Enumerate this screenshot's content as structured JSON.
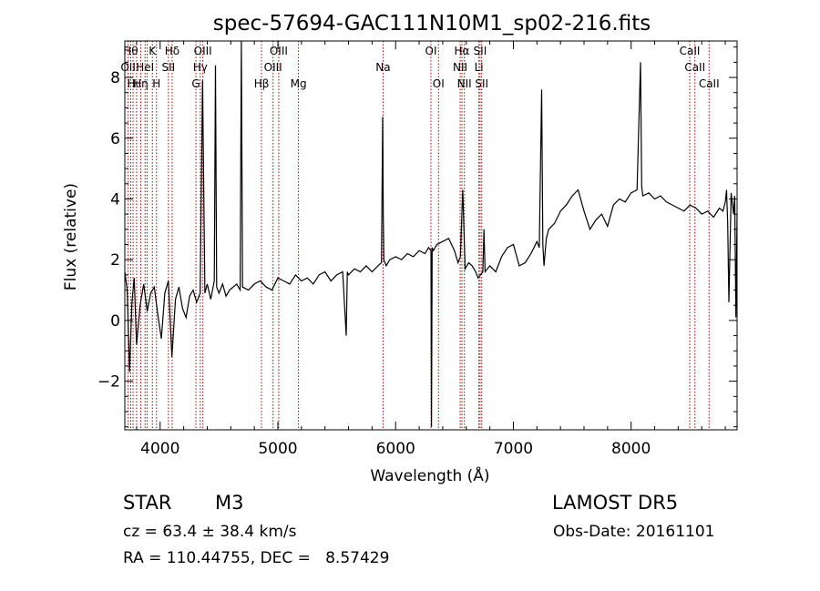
{
  "chart_data": {
    "type": "line",
    "title": "spec-57694-GAC111N10M1_sp02-216.fits",
    "xlabel": "Wavelength (Å)",
    "ylabel": "Flux (relative)",
    "xlim": [
      3700,
      8900
    ],
    "ylim": [
      -3.6,
      9.2
    ],
    "grid": false,
    "xticks": [
      4000,
      5000,
      6000,
      7000,
      8000
    ],
    "yticks": [
      -2,
      0,
      2,
      4,
      6,
      8
    ],
    "line_color": "#000000",
    "marker_color": "#aa0000",
    "series": [
      {
        "x": [
          3700,
          3720,
          3740,
          3760,
          3780,
          3800,
          3830,
          3860,
          3890,
          3920,
          3950,
          3980,
          4010,
          4040,
          4070,
          4100,
          4130,
          4160,
          4190,
          4220,
          4250,
          4280,
          4310,
          4340,
          4360,
          4380,
          4400,
          4430,
          4460,
          4470,
          4480,
          4500,
          4530,
          4560,
          4590,
          4620,
          4650,
          4680,
          4690,
          4700,
          4750,
          4800,
          4850,
          4900,
          4950,
          5000,
          5050,
          5100,
          5150,
          5200,
          5250,
          5300,
          5350,
          5400,
          5450,
          5500,
          5550,
          5580,
          5590,
          5600,
          5650,
          5700,
          5750,
          5800,
          5850,
          5880,
          5890,
          5895,
          5900,
          5920,
          5950,
          6000,
          6050,
          6100,
          6150,
          6200,
          6250,
          6280,
          6300,
          6305,
          6310,
          6320,
          6350,
          6400,
          6450,
          6500,
          6530,
          6550,
          6570,
          6590,
          6620,
          6650,
          6680,
          6700,
          6720,
          6740,
          6750,
          6760,
          6800,
          6850,
          6900,
          6950,
          7000,
          7050,
          7100,
          7150,
          7200,
          7220,
          7240,
          7250,
          7260,
          7280,
          7300,
          7350,
          7400,
          7450,
          7500,
          7550,
          7600,
          7650,
          7700,
          7750,
          7800,
          7850,
          7900,
          7950,
          8000,
          8050,
          8080,
          8090,
          8100,
          8150,
          8200,
          8250,
          8300,
          8350,
          8400,
          8450,
          8500,
          8550,
          8600,
          8650,
          8700,
          8750,
          8780,
          8800,
          8810,
          8820,
          8830,
          8850,
          8870,
          8880,
          8890,
          8900
        ],
        "y": [
          1.6,
          1.0,
          -1.7,
          0.6,
          1.4,
          -0.8,
          0.5,
          1.2,
          0.3,
          0.9,
          1.1,
          0.2,
          -0.6,
          0.9,
          1.3,
          -1.2,
          0.7,
          1.1,
          0.4,
          0.1,
          0.8,
          1.0,
          0.6,
          0.9,
          7.9,
          0.9,
          1.2,
          0.7,
          1.3,
          8.4,
          1.1,
          0.9,
          1.2,
          0.8,
          1.0,
          1.1,
          1.2,
          1.0,
          9.2,
          1.1,
          1.0,
          1.2,
          1.3,
          1.1,
          1.0,
          1.4,
          1.3,
          1.2,
          1.5,
          1.3,
          1.4,
          1.2,
          1.5,
          1.6,
          1.3,
          1.5,
          1.6,
          -0.5,
          1.6,
          1.5,
          1.7,
          1.6,
          1.8,
          1.6,
          1.8,
          1.9,
          6.7,
          3.4,
          2.0,
          1.8,
          2.0,
          2.1,
          2.0,
          2.2,
          2.1,
          2.3,
          2.2,
          2.4,
          2.3,
          -3.5,
          2.4,
          2.3,
          2.5,
          2.6,
          2.7,
          2.3,
          1.9,
          2.1,
          4.3,
          1.7,
          1.9,
          1.8,
          1.6,
          1.4,
          1.5,
          1.6,
          3.0,
          1.6,
          1.8,
          1.6,
          2.1,
          2.4,
          2.5,
          1.8,
          1.9,
          2.2,
          2.6,
          2.4,
          7.6,
          2.5,
          1.8,
          2.7,
          3.0,
          3.2,
          3.6,
          3.8,
          4.1,
          4.3,
          3.6,
          3.0,
          3.3,
          3.5,
          3.1,
          3.8,
          4.0,
          3.9,
          4.2,
          4.3,
          8.5,
          4.4,
          4.1,
          4.2,
          4.0,
          4.1,
          3.9,
          3.8,
          3.7,
          3.6,
          3.8,
          3.7,
          3.5,
          3.6,
          3.4,
          3.7,
          3.6,
          3.9,
          4.3,
          3.2,
          0.6,
          4.2,
          3.5,
          4.1,
          0.1,
          3.5
        ]
      }
    ],
    "lines": [
      {
        "w": 3728,
        "label": "OII",
        "row": 1
      },
      {
        "w": 3750,
        "label": "Hθ",
        "row": 0
      },
      {
        "w": 3770,
        "label": "Hι",
        "row": 2
      },
      {
        "w": 3800,
        "label": "",
        "row": 0
      },
      {
        "w": 3835,
        "label": "Hη",
        "row": 2
      },
      {
        "w": 3872,
        "label": "HeI",
        "row": 1
      },
      {
        "w": 3889,
        "label": "",
        "row": 0
      },
      {
        "w": 3934,
        "label": "K",
        "row": 0
      },
      {
        "w": 3969,
        "label": "H",
        "row": 2
      },
      {
        "w": 4070,
        "label": "SII",
        "row": 1
      },
      {
        "w": 4102,
        "label": "Hδ",
        "row": 0
      },
      {
        "w": 4304,
        "label": "G",
        "row": 2
      },
      {
        "w": 4341,
        "label": "Hγ",
        "row": 1
      },
      {
        "w": 4363,
        "label": "OIII",
        "row": 0
      },
      {
        "w": 4861,
        "label": "Hβ",
        "row": 2
      },
      {
        "w": 4959,
        "label": "OIII",
        "row": 1
      },
      {
        "w": 5007,
        "label": "OIII",
        "row": 0
      },
      {
        "w": 5175,
        "label": "Mg",
        "row": 2
      },
      {
        "w": 5893,
        "label": "Na",
        "row": 1
      },
      {
        "w": 6300,
        "label": "OI",
        "row": 0
      },
      {
        "w": 6364,
        "label": "OI",
        "row": 2
      },
      {
        "w": 6548,
        "label": "NII",
        "row": 1
      },
      {
        "w": 6563,
        "label": "Hα",
        "row": 0
      },
      {
        "w": 6584,
        "label": "NII",
        "row": 2
      },
      {
        "w": 6707,
        "label": "Li",
        "row": 1
      },
      {
        "w": 6717,
        "label": "SII",
        "row": 0
      },
      {
        "w": 6731,
        "label": "SII",
        "row": 2
      },
      {
        "w": 8498,
        "label": "CaII",
        "row": 0
      },
      {
        "w": 8542,
        "label": "CaII",
        "row": 1
      },
      {
        "w": 8662,
        "label": "CaII",
        "row": 2
      }
    ]
  },
  "info": {
    "class_label": "STAR",
    "subclass": "M3",
    "cz": "cz = 63.4 ± 38.4 km/s",
    "radec": "RA = 110.44755, DEC =   8.57429",
    "survey": "LAMOST DR5",
    "obs_date": "Obs-Date: 20161101"
  }
}
